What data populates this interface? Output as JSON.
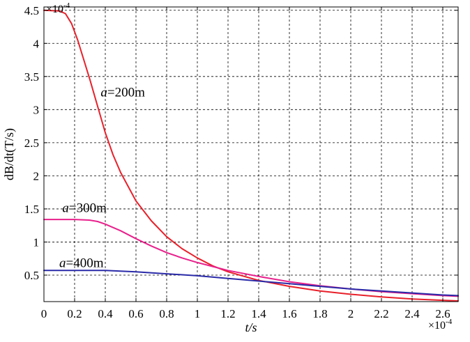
{
  "chart_data": {
    "type": "line",
    "title": "",
    "xlabel": "t/s",
    "ylabel": "dB/dt(T/s)",
    "x_multiplier": "×10",
    "x_exponent": "-4",
    "y_multiplier": "×10",
    "y_exponent": "-4",
    "xlim": [
      0,
      2.7
    ],
    "ylim": [
      0.1,
      4.55
    ],
    "x_ticks": [
      0,
      0.2,
      0.4,
      0.6,
      0.8,
      1,
      1.2,
      1.4,
      1.6,
      1.8,
      2,
      2.2,
      2.4,
      2.6
    ],
    "x_tick_labels": [
      "0",
      "0.2",
      "0.4",
      "0.6",
      "0.8",
      "1",
      "1.2",
      "1.4",
      "1.6",
      "1.8",
      "2",
      "2.2",
      "2.4",
      "2.6"
    ],
    "y_ticks": [
      0.5,
      1,
      1.5,
      2,
      2.5,
      3,
      3.5,
      4,
      4.5
    ],
    "y_tick_labels": [
      "0.5",
      "1",
      "1.5",
      "2",
      "2.5",
      "3",
      "3.5",
      "4",
      "4.5"
    ],
    "grid": true,
    "series": [
      {
        "name": "a=200m",
        "label_prefix": "a",
        "label_suffix": "=200m",
        "color": "#e8202a",
        "x": [
          0,
          0.1,
          0.14,
          0.18,
          0.22,
          0.26,
          0.3,
          0.35,
          0.4,
          0.45,
          0.5,
          0.6,
          0.7,
          0.8,
          0.9,
          1.0,
          1.1,
          1.2,
          1.4,
          1.6,
          1.8,
          2.0,
          2.2,
          2.4,
          2.6,
          2.7
        ],
        "y": [
          4.5,
          4.49,
          4.45,
          4.3,
          4.05,
          3.75,
          3.45,
          3.05,
          2.65,
          2.32,
          2.05,
          1.62,
          1.32,
          1.08,
          0.9,
          0.76,
          0.64,
          0.55,
          0.42,
          0.33,
          0.26,
          0.21,
          0.17,
          0.14,
          0.12,
          0.11
        ]
      },
      {
        "name": "a=300m",
        "label_prefix": "a",
        "label_suffix": "=300m",
        "color": "#e8208c",
        "x": [
          0,
          0.1,
          0.2,
          0.3,
          0.35,
          0.4,
          0.5,
          0.6,
          0.7,
          0.8,
          0.9,
          1.0,
          1.1,
          1.2,
          1.4,
          1.6,
          1.8,
          2.0,
          2.2,
          2.4,
          2.6,
          2.7
        ],
        "y": [
          1.34,
          1.34,
          1.34,
          1.33,
          1.31,
          1.27,
          1.17,
          1.05,
          0.94,
          0.84,
          0.76,
          0.69,
          0.63,
          0.57,
          0.48,
          0.4,
          0.34,
          0.29,
          0.25,
          0.22,
          0.19,
          0.18
        ]
      },
      {
        "name": "a=400m",
        "label_prefix": "a",
        "label_suffix": "=400m",
        "color": "#2a2aa8",
        "x": [
          0,
          0.2,
          0.4,
          0.6,
          0.8,
          1.0,
          1.2,
          1.4,
          1.6,
          1.8,
          2.0,
          2.2,
          2.4,
          2.6,
          2.7
        ],
        "y": [
          0.57,
          0.57,
          0.57,
          0.55,
          0.52,
          0.49,
          0.45,
          0.41,
          0.37,
          0.33,
          0.29,
          0.26,
          0.23,
          0.2,
          0.19
        ]
      }
    ],
    "annotations": [
      {
        "series": 0,
        "x": 0.37,
        "y": 3.2
      },
      {
        "series": 1,
        "x": 0.12,
        "y": 1.45
      },
      {
        "series": 2,
        "x": 0.1,
        "y": 0.62
      }
    ]
  }
}
